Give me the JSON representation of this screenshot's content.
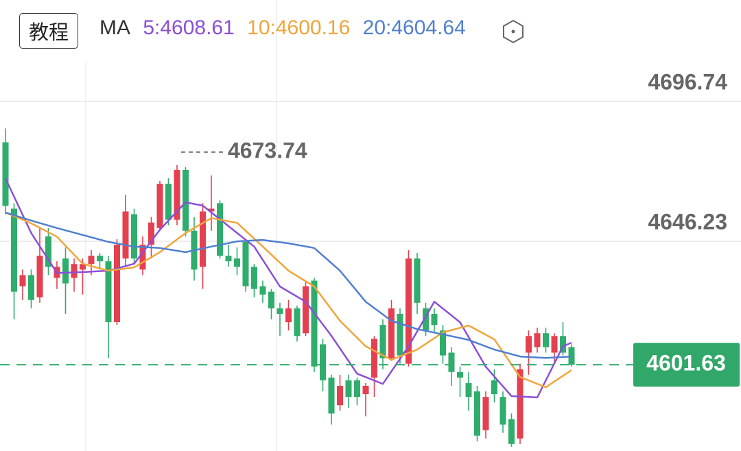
{
  "toolbar": {
    "tutorial_button": "教程"
  },
  "chart_data": {
    "type": "candlestick",
    "ma_label": "MA",
    "up_color": "#e5404f",
    "down_color": "#2fad6c",
    "ylim": [
      4570.47,
      4733.38
    ],
    "yticks": [
      4646.23,
      4696.74
    ],
    "grid": true,
    "max_annotation": 4673.74,
    "last_price": 4601.63,
    "ohlc": [
      [
        4682,
        4687,
        4656,
        4659
      ],
      [
        4658,
        4660,
        4618,
        4628
      ],
      [
        4630,
        4636,
        4625,
        4634
      ],
      [
        4634,
        4636,
        4622,
        4625
      ],
      [
        4626,
        4651,
        4624,
        4641
      ],
      [
        4648,
        4651,
        4634,
        4637
      ],
      [
        4633,
        4639,
        4629,
        4637
      ],
      [
        4640,
        4644,
        4620,
        4631
      ],
      [
        4633,
        4640,
        4628,
        4638
      ],
      [
        4636,
        4640,
        4627,
        4638
      ],
      [
        4638,
        4643,
        4634,
        4641
      ],
      [
        4641,
        4642,
        4636,
        4639
      ],
      [
        4639,
        4641,
        4604,
        4617
      ],
      [
        4617,
        4647,
        4616,
        4645
      ],
      [
        4640,
        4663,
        4637,
        4657
      ],
      [
        4656,
        4658,
        4638,
        4640
      ],
      [
        4636,
        4648,
        4634,
        4645
      ],
      [
        4645,
        4655,
        4640,
        4653
      ],
      [
        4651,
        4668,
        4650,
        4667
      ],
      [
        4667,
        4669,
        4652,
        4654
      ],
      [
        4654,
        4673.74,
        4652,
        4672
      ],
      [
        4672,
        4673,
        4648,
        4650
      ],
      [
        4650,
        4655,
        4632,
        4636
      ],
      [
        4637,
        4660,
        4629,
        4657
      ],
      [
        4657,
        4670,
        4650,
        4658
      ],
      [
        4660,
        4661,
        4640,
        4641
      ],
      [
        4641,
        4645,
        4637,
        4639
      ],
      [
        4640,
        4644,
        4634,
        4637
      ],
      [
        4646,
        4647,
        4628,
        4630
      ],
      [
        4637,
        4638,
        4626,
        4629
      ],
      [
        4630,
        4632,
        4624,
        4627
      ],
      [
        4628,
        4629,
        4618,
        4622
      ],
      [
        4622,
        4624,
        4612,
        4620
      ],
      [
        4617,
        4625,
        4614,
        4622
      ],
      [
        4622,
        4623,
        4610,
        4612
      ],
      [
        4613,
        4632,
        4612,
        4630
      ],
      [
        4632,
        4633,
        4599,
        4601
      ],
      [
        4609,
        4611,
        4592,
        4596
      ],
      [
        4597,
        4598,
        4580,
        4584
      ],
      [
        4587,
        4598,
        4585,
        4594
      ],
      [
        4596,
        4598,
        4586,
        4590
      ],
      [
        4596,
        4597,
        4587,
        4590
      ],
      [
        4591,
        4595,
        4583,
        4594
      ],
      [
        4597,
        4612,
        4590,
        4611
      ],
      [
        4616,
        4618,
        4600,
        4604
      ],
      [
        4604,
        4625,
        4603,
        4622
      ],
      [
        4620,
        4622,
        4602,
        4605
      ],
      [
        4602,
        4643,
        4601,
        4640
      ],
      [
        4640,
        4642,
        4620,
        4624
      ],
      [
        4622,
        4624,
        4612,
        4614
      ],
      [
        4620,
        4622,
        4613,
        4616
      ],
      [
        4614,
        4616,
        4602,
        4605
      ],
      [
        4606,
        4608,
        4594,
        4599
      ],
      [
        4599,
        4601,
        4590,
        4597
      ],
      [
        4595,
        4599,
        4585,
        4590
      ],
      [
        4592,
        4594,
        4574,
        4576
      ],
      [
        4578,
        4592,
        4575,
        4590
      ],
      [
        4596,
        4600,
        4588,
        4591
      ],
      [
        4590,
        4592,
        4577,
        4580
      ],
      [
        4582,
        4584,
        4572,
        4573
      ],
      [
        4575,
        4602,
        4573,
        4600
      ],
      [
        4606,
        4614,
        4598,
        4612
      ],
      [
        4608,
        4615,
        4606,
        4613
      ],
      [
        4613,
        4615,
        4606,
        4608
      ],
      [
        4606,
        4613,
        4602,
        4612
      ],
      [
        4612,
        4617,
        4605,
        4606
      ],
      [
        4608,
        4609,
        4601,
        4601.63
      ]
    ],
    "series": [
      {
        "name": "5:4608.61",
        "color": "#8a4fd6",
        "x": [
          0,
          3,
          6,
          9,
          12,
          15,
          18,
          21,
          23,
          26,
          29,
          32,
          35,
          38,
          41,
          44,
          47,
          50,
          53,
          56,
          59,
          62,
          65,
          66
        ],
        "values": [
          4668.9,
          4649.2,
          4634.8,
          4635.1,
          4635.6,
          4638.1,
          4650.4,
          4660.3,
          4659.1,
          4651.7,
          4644.3,
          4629.9,
          4624.4,
          4612.1,
          4598.4,
          4594.7,
          4608.3,
          4624.4,
          4617.0,
          4600.9,
          4590.3,
          4589.8,
          4608.3,
          4609.6
        ]
      },
      {
        "name": "10:4600.16",
        "color": "#f0a53a",
        "x": [
          0,
          3,
          6,
          9,
          12,
          15,
          18,
          21,
          24,
          27,
          30,
          33,
          36,
          39,
          42,
          45,
          48,
          51,
          54,
          57,
          60,
          63,
          66
        ],
        "values": [
          4656.6,
          4652.7,
          4647.9,
          4638.1,
          4635.6,
          4636.8,
          4642.3,
          4649.2,
          4654.6,
          4652.9,
          4644.3,
          4635.6,
          4629.9,
          4617.5,
          4608.3,
          4603.4,
          4607.1,
          4613.3,
          4615.8,
          4610.8,
          4597.2,
          4593.5,
          4599.7
        ]
      },
      {
        "name": "20:4604.64",
        "color": "#4f7fd0",
        "x": [
          0,
          3,
          6,
          9,
          12,
          15,
          18,
          21,
          24,
          27,
          30,
          33,
          36,
          39,
          42,
          45,
          48,
          51,
          54,
          57,
          60,
          63,
          66
        ],
        "values": [
          4656.6,
          4653.7,
          4651.0,
          4648.5,
          4646.0,
          4644.3,
          4643.8,
          4642.3,
          4644.3,
          4646.2,
          4646.7,
          4645.5,
          4643.8,
          4635.6,
          4624.4,
          4617.5,
          4614.5,
          4612.6,
          4610.6,
          4607.1,
          4604.6,
          4604.1,
          4604.6
        ]
      }
    ]
  }
}
